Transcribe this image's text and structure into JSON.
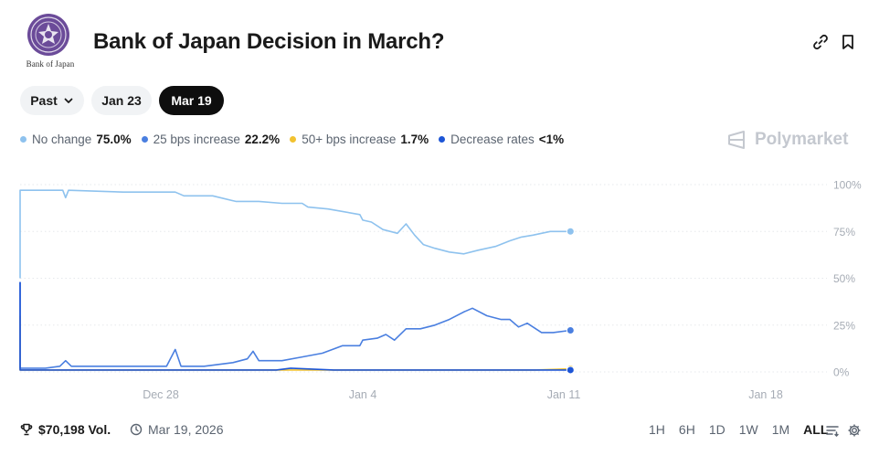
{
  "header": {
    "logo_text": "Bank of Japan",
    "title": "Bank of Japan Decision in March?",
    "link_icon": "link-icon",
    "bookmark_icon": "bookmark-icon"
  },
  "filters": {
    "past_label": "Past",
    "date_1": "Jan 23",
    "date_2": "Mar 19",
    "active": "Mar 19"
  },
  "legend": [
    {
      "name": "No change",
      "value": "75.0%",
      "color": "#8ec2ee"
    },
    {
      "name": "25 bps increase",
      "value": "22.2%",
      "color": "#4a7fe0"
    },
    {
      "name": "50+ bps increase",
      "value": "1.7%",
      "color": "#f2c230"
    },
    {
      "name": "Decrease rates",
      "value": "<1%",
      "color": "#1d55d6"
    }
  ],
  "brand": "Polymarket",
  "chart_data": {
    "type": "line",
    "x_ticks": [
      "Dec 28",
      "Jan 4",
      "Jan 11",
      "Jan 18"
    ],
    "y_ticks": [
      "100%",
      "75%",
      "50%",
      "25%",
      "0%"
    ],
    "ylim": [
      0,
      100
    ],
    "grid": "horizontal-dotted",
    "x_domain_days": [
      -28,
      0
    ],
    "series": [
      {
        "name": "No change",
        "color": "#8ec2ee",
        "points": [
          [
            -28,
            50
          ],
          [
            -27.9,
            72
          ],
          [
            -27.6,
            75
          ],
          [
            -27.2,
            76
          ],
          [
            -26.8,
            79
          ],
          [
            -26.3,
            78
          ],
          [
            -25.8,
            80
          ],
          [
            -25.2,
            78
          ],
          [
            -24.6,
            80
          ],
          [
            -24,
            80
          ],
          [
            -23.2,
            78
          ],
          [
            -22.4,
            79
          ],
          [
            -21.6,
            77
          ],
          [
            -20.8,
            78
          ],
          [
            -20,
            77
          ],
          [
            -19.2,
            78
          ],
          [
            -18.2,
            79
          ],
          [
            -17.2,
            80
          ],
          [
            -16.2,
            80
          ],
          [
            -15.2,
            80
          ],
          [
            -14.8,
            81
          ],
          [
            -14.4,
            82
          ],
          [
            -14.2,
            85
          ],
          [
            -13.9,
            88
          ],
          [
            -13.4,
            90
          ],
          [
            -13.1,
            92
          ],
          [
            -12.9,
            97
          ],
          [
            -11.2,
            97
          ],
          [
            -10.4,
            97
          ],
          [
            -10.3,
            93
          ],
          [
            -10.2,
            97
          ],
          [
            -8.3,
            96
          ],
          [
            -6.5,
            96
          ],
          [
            -6.2,
            94
          ],
          [
            -5.2,
            94
          ],
          [
            -4.4,
            91
          ],
          [
            -3.6,
            91
          ],
          [
            -2.8,
            90
          ],
          [
            -2.1,
            90
          ],
          [
            -1.9,
            88
          ],
          [
            -1.2,
            87
          ],
          [
            -0.1,
            84
          ],
          [
            0,
            81
          ],
          [
            0.3,
            80
          ],
          [
            0.7,
            76
          ],
          [
            1.2,
            74
          ],
          [
            1.5,
            79
          ],
          [
            1.8,
            73
          ],
          [
            2.1,
            68
          ],
          [
            2.5,
            66
          ],
          [
            3.0,
            64
          ],
          [
            3.5,
            63
          ],
          [
            4.0,
            65
          ],
          [
            4.6,
            67
          ],
          [
            5.1,
            70
          ],
          [
            5.5,
            72
          ],
          [
            5.9,
            73
          ],
          [
            6.2,
            74
          ],
          [
            6.5,
            75
          ],
          [
            7.2,
            75
          ]
        ]
      },
      {
        "name": "25 bps increase",
        "color": "#4a7fe0",
        "points": [
          [
            -28,
            48
          ],
          [
            -27.9,
            25
          ],
          [
            -27.6,
            22
          ],
          [
            -27.2,
            20
          ],
          [
            -26.8,
            19
          ],
          [
            -26.3,
            20
          ],
          [
            -25.8,
            18
          ],
          [
            -25.2,
            19
          ],
          [
            -24.6,
            16
          ],
          [
            -24,
            17
          ],
          [
            -22.4,
            17
          ],
          [
            -21.4,
            16
          ],
          [
            -20.4,
            17
          ],
          [
            -19.2,
            16
          ],
          [
            -18.2,
            17
          ],
          [
            -17.2,
            15
          ],
          [
            -16.2,
            15
          ],
          [
            -15.2,
            15
          ],
          [
            -14.6,
            14
          ],
          [
            -14.2,
            11
          ],
          [
            -13.9,
            8
          ],
          [
            -13.5,
            6
          ],
          [
            -13.1,
            3
          ],
          [
            -12.8,
            2
          ],
          [
            -11,
            2
          ],
          [
            -10.5,
            3
          ],
          [
            -10.3,
            6
          ],
          [
            -10.1,
            3
          ],
          [
            -8.3,
            3
          ],
          [
            -6.8,
            3
          ],
          [
            -6.5,
            12
          ],
          [
            -6.3,
            3
          ],
          [
            -5.5,
            3
          ],
          [
            -4.5,
            5
          ],
          [
            -4,
            7
          ],
          [
            -3.8,
            11
          ],
          [
            -3.6,
            6
          ],
          [
            -2.8,
            6
          ],
          [
            -2.1,
            8
          ],
          [
            -1.4,
            10
          ],
          [
            -0.7,
            14
          ],
          [
            -0.1,
            14
          ],
          [
            0,
            17
          ],
          [
            0.5,
            18
          ],
          [
            0.8,
            20
          ],
          [
            1.1,
            17
          ],
          [
            1.5,
            23
          ],
          [
            2.0,
            23
          ],
          [
            2.5,
            25
          ],
          [
            3.0,
            28
          ],
          [
            3.5,
            32
          ],
          [
            3.8,
            34
          ],
          [
            4.3,
            30
          ],
          [
            4.8,
            28
          ],
          [
            5.1,
            28
          ],
          [
            5.4,
            24
          ],
          [
            5.7,
            26
          ],
          [
            6.2,
            21
          ],
          [
            6.6,
            21
          ],
          [
            7.2,
            22.2
          ]
        ]
      },
      {
        "name": "50+ bps increase",
        "color": "#f2c230",
        "points": [
          [
            -28,
            30
          ],
          [
            -27.8,
            8
          ],
          [
            -27.3,
            7
          ],
          [
            -26.8,
            4
          ],
          [
            -26.3,
            3
          ],
          [
            -25.5,
            4
          ],
          [
            -25,
            6
          ],
          [
            -24.4,
            2
          ],
          [
            -22,
            2
          ],
          [
            -20,
            2
          ],
          [
            -18,
            2
          ],
          [
            -16,
            2
          ],
          [
            -14.5,
            2
          ],
          [
            -14,
            1
          ],
          [
            -12,
            1
          ],
          [
            -10,
            1
          ],
          [
            -8,
            1
          ],
          [
            -6,
            1
          ],
          [
            -4,
            1
          ],
          [
            -2,
            1
          ],
          [
            0,
            1
          ],
          [
            2,
            1
          ],
          [
            4,
            1
          ],
          [
            6,
            1
          ],
          [
            7.2,
            1.7
          ]
        ]
      },
      {
        "name": "Decrease rates",
        "color": "#1d55d6",
        "points": [
          [
            -28,
            48
          ],
          [
            -27.9,
            8
          ],
          [
            -27.6,
            3
          ],
          [
            -27.1,
            2
          ],
          [
            -26.8,
            3
          ],
          [
            -26.2,
            2
          ],
          [
            -25.5,
            2
          ],
          [
            -24.6,
            3
          ],
          [
            -23.2,
            3
          ],
          [
            -22.4,
            6
          ],
          [
            -21.8,
            5
          ],
          [
            -21.2,
            8
          ],
          [
            -20,
            8
          ],
          [
            -18.2,
            7
          ],
          [
            -17.2,
            8
          ],
          [
            -16.2,
            8
          ],
          [
            -15.2,
            8
          ],
          [
            -14.6,
            8
          ],
          [
            -14.2,
            5
          ],
          [
            -13.9,
            2
          ],
          [
            -13.4,
            1
          ],
          [
            -11,
            1
          ],
          [
            -8,
            1
          ],
          [
            -6,
            1
          ],
          [
            -4,
            1
          ],
          [
            -3,
            1
          ],
          [
            -2.5,
            2
          ],
          [
            -1,
            1
          ],
          [
            1,
            1
          ],
          [
            3,
            1
          ],
          [
            5,
            1
          ],
          [
            7.2,
            1
          ]
        ]
      }
    ]
  },
  "footer": {
    "volume": "$70,198 Vol.",
    "date": "Mar 19, 2026",
    "ranges": [
      "1H",
      "6H",
      "1D",
      "1W",
      "1M",
      "ALL"
    ],
    "active_range": "ALL"
  }
}
